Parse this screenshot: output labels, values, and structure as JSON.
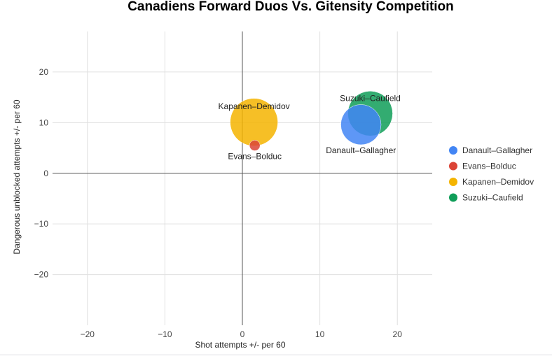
{
  "chart_data": {
    "type": "bubble",
    "title": "Canadiens Forward Duos Vs. Gitensity Competition",
    "xlabel": "Shot attempts +/- per 60",
    "ylabel": "Dangerous unblocked attempts +/- per 60",
    "xlim": [
      -24.5,
      24.5
    ],
    "ylim": [
      -30,
      28
    ],
    "x_ticks": [
      -20,
      -10,
      0,
      10,
      20
    ],
    "x_tick_labels": [
      "−20",
      "−10",
      "0",
      "10",
      "20"
    ],
    "y_ticks": [
      -20,
      -10,
      0,
      10,
      20
    ],
    "y_tick_labels": [
      "−20",
      "−10",
      "0",
      "10",
      "20"
    ],
    "grid": true,
    "legend_position": "right",
    "series": [
      {
        "name": "Danault–Gallagher",
        "color": "#4285f4",
        "x": 15.3,
        "y": 9.6,
        "size": 5,
        "label": "Danault–Gallagher",
        "label_position": "below"
      },
      {
        "name": "Evans–Bolduc",
        "color": "#db4437",
        "x": 1.6,
        "y": 5.5,
        "size": 0.35,
        "label": "Evans–Bolduc",
        "label_position": "below"
      },
      {
        "name": "Kapanen–Demidov",
        "color": "#f4b400",
        "x": 1.5,
        "y": 10.1,
        "size": 7,
        "label": "Kapanen–Demidov",
        "label_position": "above"
      },
      {
        "name": "Suzuki–Caufield",
        "color": "#0f9d58",
        "x": 16.5,
        "y": 11.8,
        "size": 6.2,
        "label": "Suzuki–Caufield",
        "label_position": "above"
      }
    ]
  }
}
